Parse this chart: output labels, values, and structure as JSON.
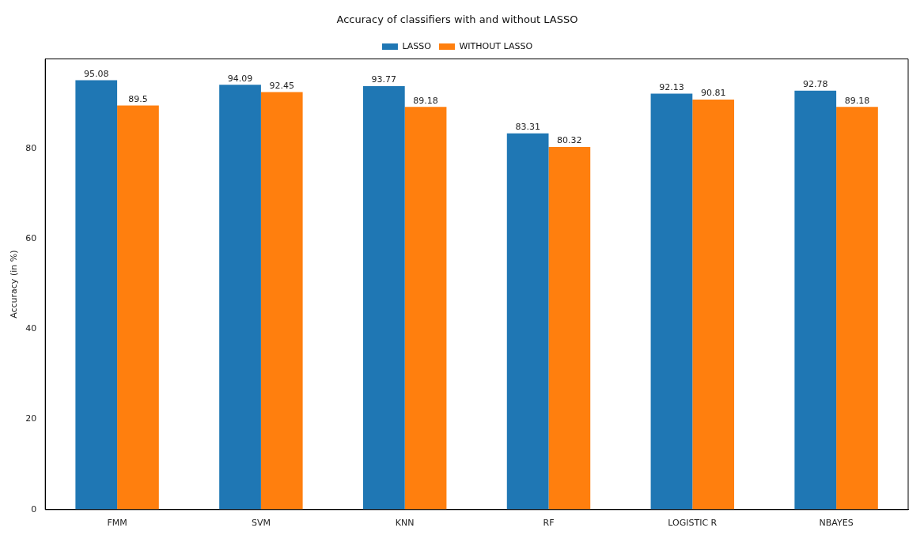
{
  "chart_data": {
    "type": "bar",
    "title": "Accuracy of classifiers with and without LASSO",
    "ylabel": "Accuracy (in %)",
    "categories": [
      "FMM",
      "SVM",
      "KNN",
      "RF",
      "LOGISTIC R",
      "NBAYES"
    ],
    "series": [
      {
        "name": "LASSO",
        "color": "#1f77b4",
        "values": [
          95.08,
          94.09,
          93.77,
          83.31,
          92.13,
          92.78
        ]
      },
      {
        "name": "WITHOUT LASSO",
        "color": "#ff7f0e",
        "values": [
          89.5,
          92.45,
          89.18,
          80.32,
          90.81,
          89.18
        ]
      }
    ],
    "ylim": [
      0,
      99.8
    ],
    "yticks": [
      0,
      20,
      40,
      60,
      80
    ],
    "grid": false,
    "legend": "top",
    "data_labels": true
  }
}
